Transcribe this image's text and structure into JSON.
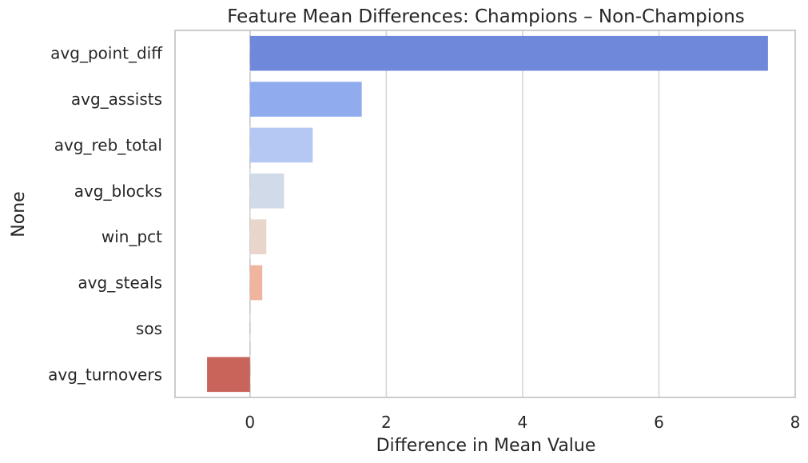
{
  "chart_data": {
    "type": "bar",
    "orientation": "horizontal",
    "title": "Feature Mean Differences: Champions – Non-Champions",
    "xlabel": "Difference in Mean Value",
    "ylabel": "None",
    "categories": [
      "avg_point_diff",
      "avg_assists",
      "avg_reb_total",
      "avg_blocks",
      "win_pct",
      "avg_steals",
      "sos",
      "avg_turnovers"
    ],
    "values": [
      7.6,
      1.64,
      0.92,
      0.5,
      0.24,
      0.18,
      0.0,
      -0.63
    ],
    "colors": [
      "#6f88d9",
      "#90acee",
      "#b4c8f3",
      "#d1dae8",
      "#e8d5cc",
      "#efb59f",
      "#e8957b",
      "#c8645a"
    ],
    "xlim": [
      -1.1,
      8.0
    ],
    "xticks": [
      0,
      2,
      4,
      6,
      8
    ],
    "grid": true
  }
}
